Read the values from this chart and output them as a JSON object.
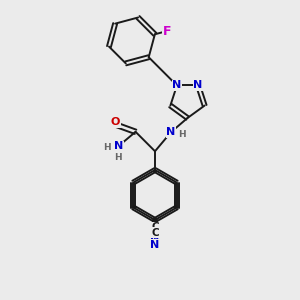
{
  "background_color": "#ebebeb",
  "bond_color": "#1a1a1a",
  "N_color": "#0000cc",
  "O_color": "#cc0000",
  "F_color": "#cc00cc",
  "H_color": "#666666",
  "lw": 1.4,
  "fs": 8.0,
  "xlim": [
    0,
    10
  ],
  "ylim": [
    0,
    12
  ]
}
